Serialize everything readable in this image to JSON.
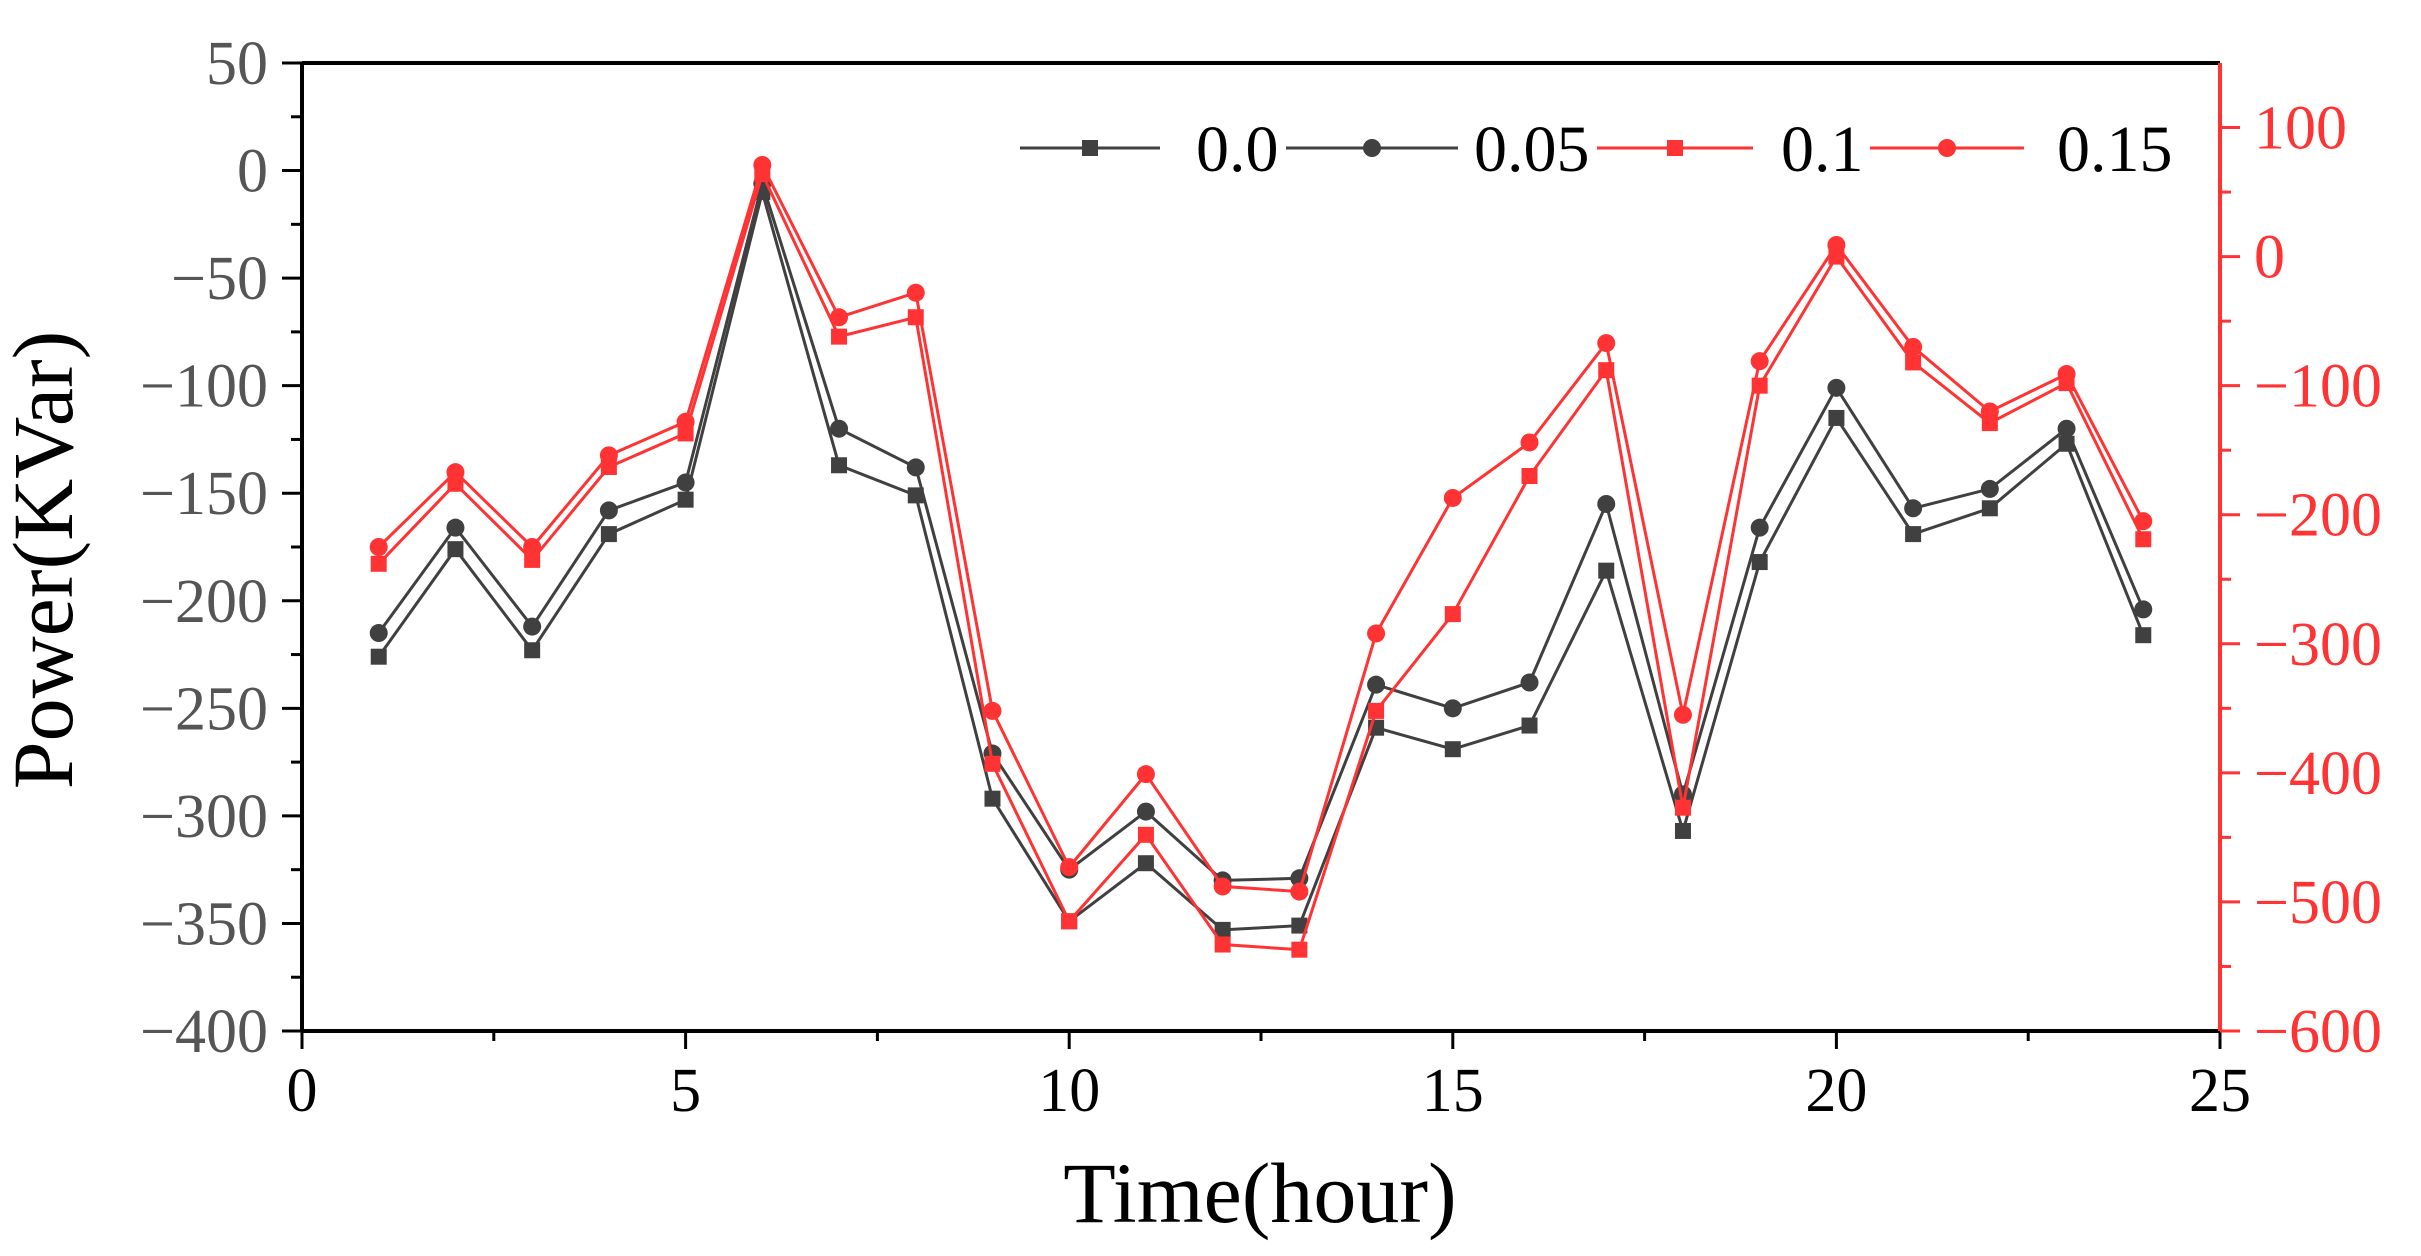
{
  "chart_data": {
    "type": "line",
    "title": "",
    "xlabel": "Time(hour)",
    "ylabel": "Power(KVar)",
    "xlim": [
      0,
      25
    ],
    "ylim_left": [
      -400,
      50
    ],
    "ylim_right": [
      -600,
      150
    ],
    "x_ticks": [
      0,
      5,
      10,
      15,
      20,
      25
    ],
    "y_left_ticks": [
      -400,
      -350,
      -300,
      -250,
      -200,
      -150,
      -100,
      -50,
      0,
      50
    ],
    "y_right_ticks": [
      -600,
      -500,
      -400,
      -300,
      -200,
      -100,
      0,
      100
    ],
    "grid": false,
    "legend_position": "top-right",
    "x": [
      1,
      2,
      3,
      4,
      5,
      6,
      7,
      8,
      9,
      10,
      11,
      12,
      13,
      14,
      15,
      16,
      17,
      18,
      19,
      20,
      21,
      22,
      23,
      24
    ],
    "series": [
      {
        "name": "0.0",
        "axis": "left",
        "marker": "square",
        "color": "#404040",
        "values": [
          -226,
          -176,
          -223,
          -169,
          -153,
          -10,
          -137,
          -151,
          -292,
          -349,
          -322,
          -353,
          -351,
          -259,
          -269,
          -258,
          -186,
          -307,
          -182,
          -115,
          -169,
          -157,
          -127,
          -216
        ]
      },
      {
        "name": "0.05",
        "axis": "left",
        "marker": "circle",
        "color": "#404040",
        "values": [
          -215,
          -166,
          -212,
          -158,
          -145,
          -6,
          -120,
          -138,
          -271,
          -325,
          -298,
          -330,
          -329,
          -239,
          -250,
          -238,
          -155,
          -290,
          -166,
          -101,
          -157,
          -148,
          -120,
          -204
        ]
      },
      {
        "name": "0.1",
        "axis": "right",
        "marker": "square",
        "color": "#ff3333",
        "values": [
          -238,
          -176,
          -235,
          -163,
          -137,
          64,
          -62,
          -47,
          -393,
          -515,
          -448,
          -533,
          -537,
          -352,
          -277,
          -170,
          -88,
          -427,
          -100,
          0,
          -82,
          -129,
          -98,
          -219
        ]
      },
      {
        "name": "0.15",
        "axis": "right",
        "marker": "circle",
        "color": "#ff3333",
        "values": [
          -225,
          -167,
          -225,
          -154,
          -128,
          71,
          -47,
          -28,
          -352,
          -473,
          -401,
          -488,
          -492,
          -292,
          -187,
          -144,
          -67,
          -355,
          -81,
          9,
          -70,
          -120,
          -91,
          -205
        ]
      }
    ]
  },
  "colors": {
    "left_axis": "#000000",
    "right_axis": "#ff3333",
    "left_tick_text": "#555555"
  }
}
